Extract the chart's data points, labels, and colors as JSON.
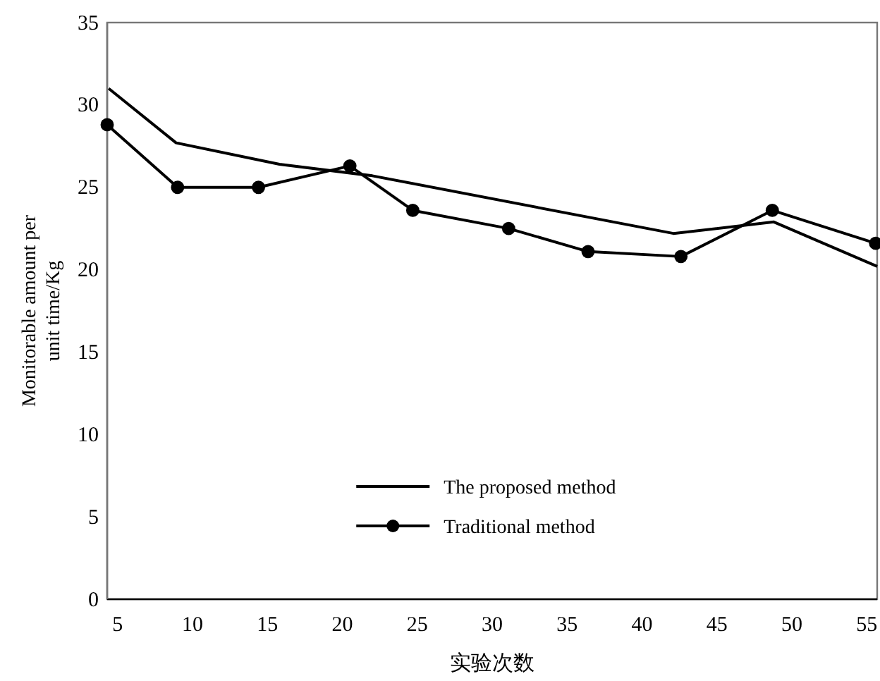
{
  "chart_data": {
    "type": "line",
    "xlabel": "实验次数",
    "ylabel": "Monitorable amount per unit time/Kg",
    "xlim": [
      4.3,
      55.7
    ],
    "xticks": [
      5,
      10,
      15,
      20,
      25,
      30,
      35,
      40,
      45,
      50,
      55
    ],
    "ylim": [
      0,
      35
    ],
    "yticks": [
      0,
      5,
      10,
      15,
      20,
      25,
      30,
      35
    ],
    "grid": false,
    "legend": "bottom",
    "series": [
      {
        "name": "The proposed method",
        "color": "#000000",
        "marker": "none",
        "x": [
          4.4,
          8.9,
          15.8,
          22.0,
          42.1,
          48.8,
          55.7
        ],
        "values": [
          31.0,
          27.7,
          26.4,
          25.7,
          22.2,
          22.9,
          20.2
        ]
      },
      {
        "name": "Traditional method",
        "color": "#000000",
        "marker": "circle",
        "x": [
          4.3,
          9.0,
          14.4,
          20.5,
          24.7,
          31.1,
          36.4,
          42.6,
          48.7,
          55.6
        ],
        "values": [
          28.8,
          25.0,
          25.0,
          26.3,
          23.6,
          22.5,
          21.1,
          20.8,
          23.6,
          21.6
        ]
      }
    ]
  }
}
